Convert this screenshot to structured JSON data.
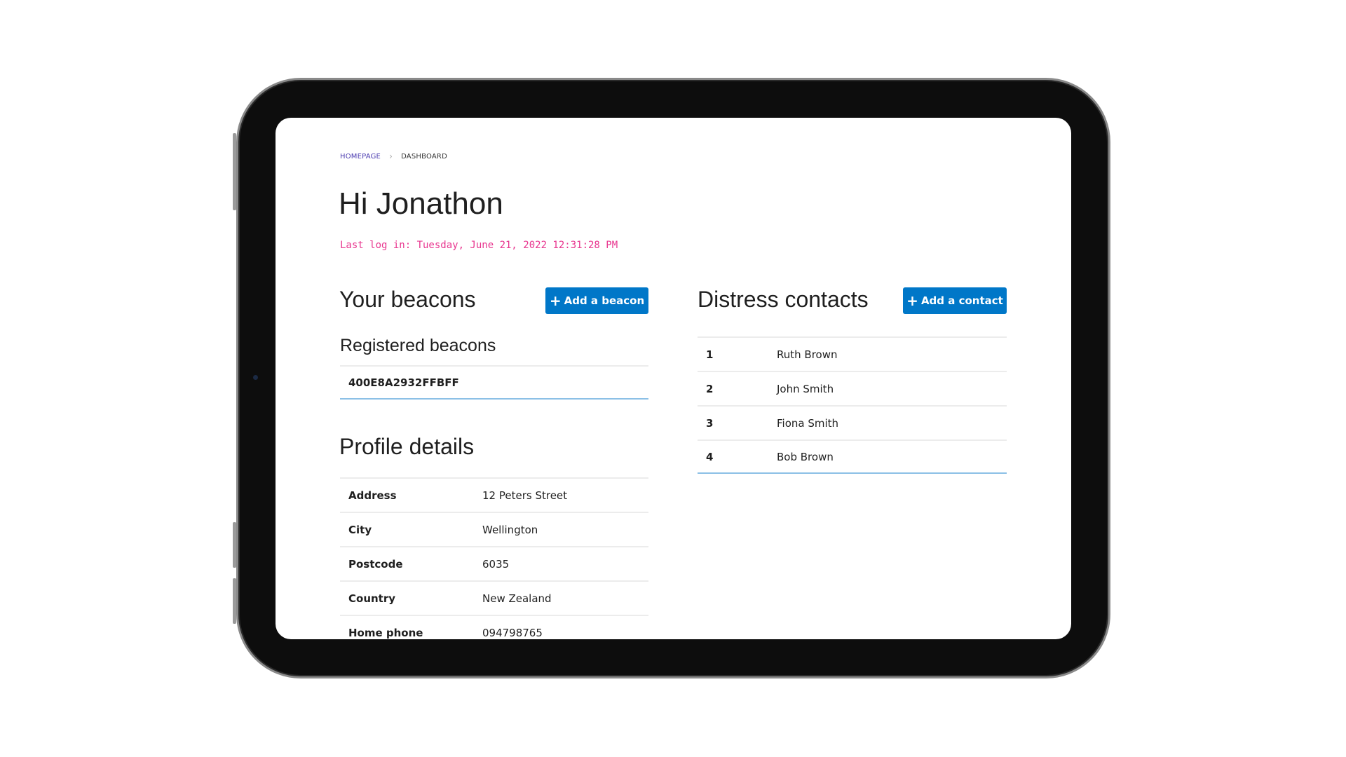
{
  "breadcrumb": {
    "home": "HOMEPAGE",
    "current": "DASHBOARD"
  },
  "greeting": "Hi Jonathon",
  "last_login": "Last log in: Tuesday, June 21, 2022 12:31:28 PM",
  "beacons": {
    "title": "Your beacons",
    "add_label": "Add a beacon",
    "registered_title": "Registered beacons",
    "items": [
      "400E8A2932FFBFF"
    ]
  },
  "profile": {
    "title": "Profile details",
    "rows": [
      {
        "label": "Address",
        "value": "12 Peters Street"
      },
      {
        "label": "City",
        "value": "Wellington"
      },
      {
        "label": "Postcode",
        "value": "6035"
      },
      {
        "label": "Country",
        "value": "New Zealand"
      },
      {
        "label": "Home phone",
        "value": "094798765"
      }
    ]
  },
  "contacts": {
    "title": "Distress contacts",
    "add_label": "Add a contact",
    "items": [
      {
        "n": "1",
        "name": "Ruth Brown"
      },
      {
        "n": "2",
        "name": "John Smith"
      },
      {
        "n": "3",
        "name": "Fiona Smith"
      },
      {
        "n": "4",
        "name": "Bob Brown"
      }
    ]
  },
  "colors": {
    "accent": "#0077c8",
    "login": "#e8368f",
    "link": "#4b3bb0"
  }
}
